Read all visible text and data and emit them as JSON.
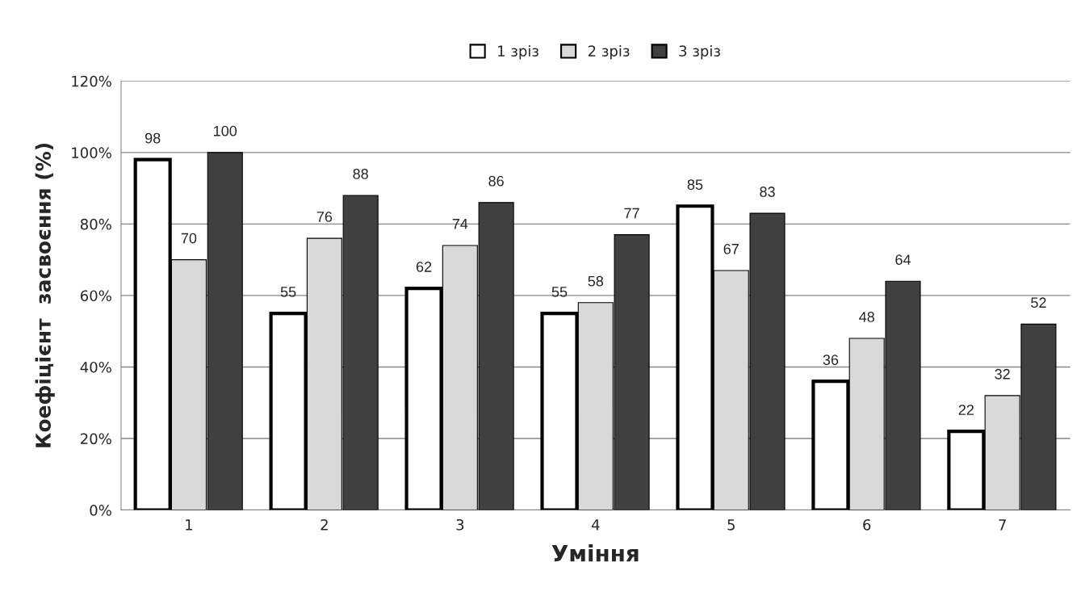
{
  "chart_data": {
    "type": "bar",
    "xlabel": "Уміння",
    "ylabel": "Коефіцієнт  засвоєння (%)",
    "categories": [
      "1",
      "2",
      "3",
      "4",
      "5",
      "6",
      "7"
    ],
    "series": [
      {
        "name": "1 зріз",
        "color": "#ffffff",
        "values": [
          98,
          55,
          62,
          55,
          85,
          36,
          22
        ]
      },
      {
        "name": "2 зріз",
        "color": "#d9d9d9",
        "values": [
          70,
          76,
          74,
          58,
          67,
          48,
          32
        ]
      },
      {
        "name": "3 зріз",
        "color": "#404040",
        "values": [
          100,
          88,
          86,
          77,
          83,
          64,
          52
        ]
      }
    ],
    "ylim": [
      0,
      120
    ],
    "yticks": [
      {
        "value": 0,
        "label": "0%"
      },
      {
        "value": 20,
        "label": "20%"
      },
      {
        "value": 40,
        "label": "40%"
      },
      {
        "value": 60,
        "label": "60%"
      },
      {
        "value": 80,
        "label": "80%"
      },
      {
        "value": 100,
        "label": "100%"
      },
      {
        "value": 120,
        "label": "120%"
      }
    ],
    "grid": "y",
    "legend": "top",
    "data_labels": true
  }
}
